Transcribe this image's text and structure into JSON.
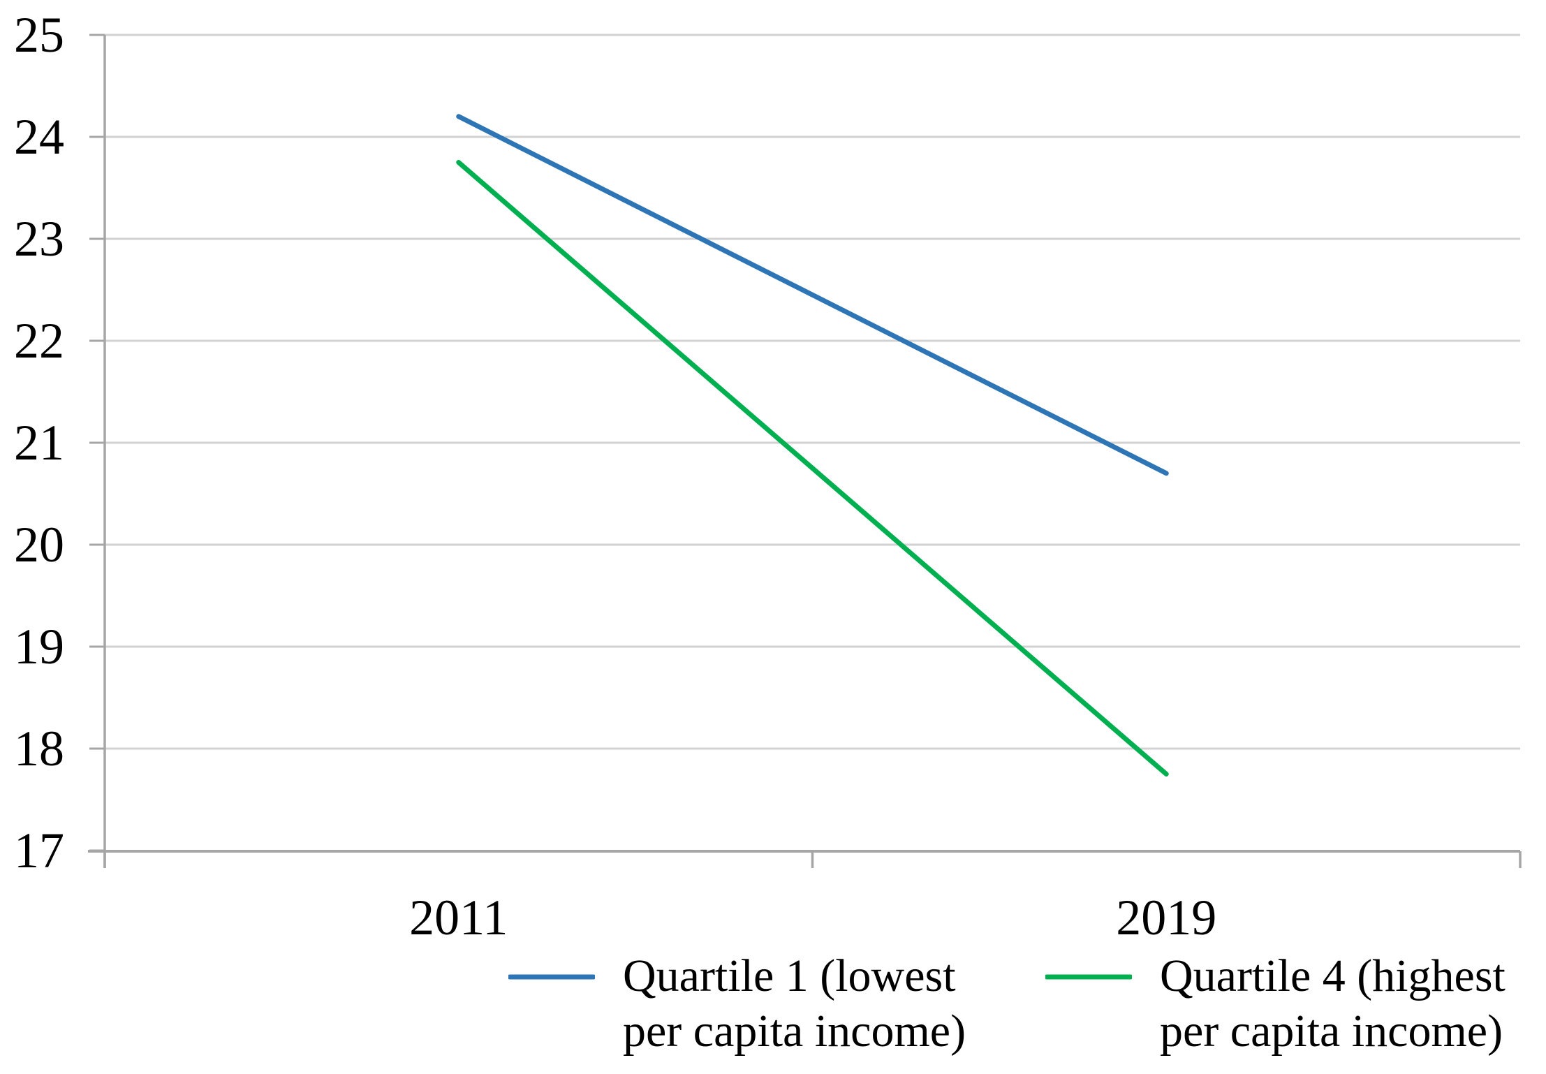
{
  "figure": {
    "background_color": "#ffffff",
    "gridline_color": "#d2d2d2",
    "axis_color": "#a6a6a6",
    "text_color": "#000000"
  },
  "chart_data": {
    "type": "line",
    "title": "",
    "xlabel": "",
    "ylabel": "",
    "categories": [
      "2011",
      "2019"
    ],
    "series": [
      {
        "name": "Quartile 1 (lowest per capita income)",
        "label_lines": [
          "Quartile 1 (lowest",
          "per capita income)"
        ],
        "values": [
          24.2,
          20.7
        ],
        "color": "#2E75B6"
      },
      {
        "name": "Quartile 4 (highest per capita income)",
        "label_lines": [
          "Quartile 4 (highest",
          "per capita income)"
        ],
        "values": [
          23.75,
          17.75
        ],
        "color": "#00B050"
      }
    ],
    "ylim": [
      17,
      25
    ],
    "yticks": [
      17,
      18,
      19,
      20,
      21,
      22,
      23,
      24,
      25
    ],
    "grid": "horizontal",
    "legend_position": "bottom"
  }
}
